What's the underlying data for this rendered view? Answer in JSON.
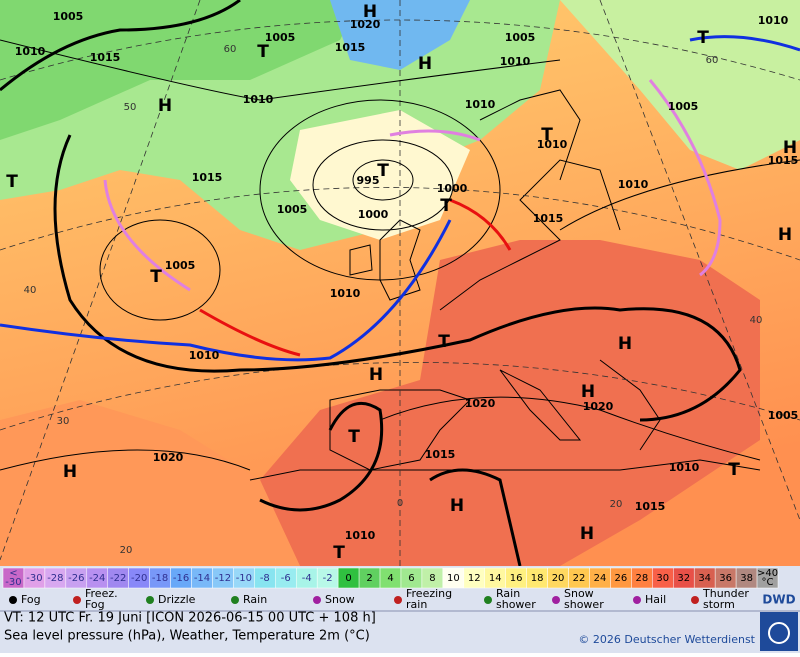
{
  "map": {
    "isobar_labels": [
      "1005",
      "1010",
      "1015",
      "1005",
      "1015",
      "1020",
      "1005",
      "1010",
      "1010",
      "1010",
      "1010",
      "1005",
      "1015",
      "995",
      "1005",
      "1000",
      "1000",
      "1015",
      "1010",
      "1015",
      "1005",
      "1010",
      "1010",
      "1020",
      "1020",
      "1015",
      "1020",
      "1010",
      "1015",
      "1010",
      "1005",
      "1010"
    ],
    "pressure_centers": [
      "H",
      "H",
      "H",
      "H",
      "H",
      "H",
      "H",
      "H",
      "H",
      "H",
      "H",
      "T",
      "T",
      "T",
      "T",
      "T",
      "T",
      "T",
      "T",
      "T",
      "T",
      "T"
    ],
    "latitude_labels": [
      "60",
      "50",
      "40",
      "30",
      "20",
      "0",
      "60",
      "20",
      "40"
    ]
  },
  "legend": {
    "scale": {
      "below": [
        "<",
        "-30"
      ],
      "values": [
        -30,
        -28,
        -26,
        -24,
        -22,
        -20,
        -18,
        -16,
        -14,
        -12,
        -10,
        -8,
        -6,
        -4,
        -2,
        0,
        2,
        4,
        6,
        8,
        10,
        12,
        14,
        16,
        18,
        20,
        22,
        24,
        26,
        28,
        30,
        32,
        34,
        36,
        38
      ],
      "above": [
        ">40",
        "°C"
      ],
      "colors": [
        "#c868c8",
        "#e0a0e8",
        "#d8a8f0",
        "#c8a0f0",
        "#b890f0",
        "#a088f0",
        "#8888f8",
        "#7898f8",
        "#68a8f8",
        "#78b8f8",
        "#88c8f8",
        "#98d8f8",
        "#88e4f0",
        "#98ecf0",
        "#a8f4e8",
        "#b8f8e8",
        "#30c040",
        "#60d060",
        "#80e070",
        "#a0e890",
        "#c0f0a8",
        "#fffff0",
        "#ffffc0",
        "#fff8a0",
        "#fff080",
        "#ffe870",
        "#ffd860",
        "#ffc850",
        "#ffb048",
        "#ff9840",
        "#ff8040",
        "#f86048",
        "#e85048",
        "#d86050",
        "#c87868",
        "#b08880",
        "#a0a0a0"
      ]
    },
    "weather": [
      {
        "label": "Fog"
      },
      {
        "label": "Freez.\nFog"
      },
      {
        "label": "Drizzle"
      },
      {
        "label": "Rain"
      },
      {
        "label": "Snow"
      },
      {
        "label": "Freezing\nrain"
      },
      {
        "label": "Rain\nshower"
      },
      {
        "label": "Snow\nshower"
      },
      {
        "label": "Hail"
      },
      {
        "label": "Thunder\nstorm"
      }
    ]
  },
  "footer": {
    "valid_time": "VT: 12 UTC Fr.  19 Juni [ICON 2026-06-15  00 UTC + 108 h]",
    "description": "Sea level pressure (hPa), Weather, Temperature 2m (°C)",
    "copyright": "© 2026 Deutscher Wetterdienst",
    "logo": "DWD"
  }
}
